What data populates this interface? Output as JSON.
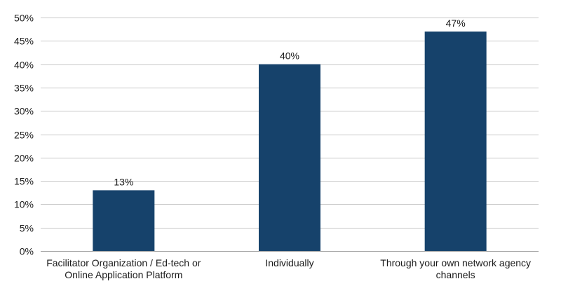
{
  "chart_data": {
    "type": "bar",
    "categories": [
      [
        "Facilitator Organization / Ed-tech or",
        "Online Application Platform"
      ],
      [
        "Individually"
      ],
      [
        "Through your own network agency",
        "channels"
      ]
    ],
    "values": [
      13,
      40,
      47
    ],
    "data_labels": [
      "13%",
      "40%",
      "47%"
    ],
    "title": "",
    "xlabel": "",
    "ylabel": "",
    "ylim": [
      0,
      50
    ],
    "yticks": [
      0,
      5,
      10,
      15,
      20,
      25,
      30,
      35,
      40,
      45,
      50
    ],
    "ytick_labels": [
      "0%",
      "5%",
      "10%",
      "15%",
      "20%",
      "25%",
      "30%",
      "35%",
      "40%",
      "45%",
      "50%"
    ],
    "grid": true,
    "legend": "none",
    "colors": {
      "bar": "#16426b",
      "grid": "#c8c8c8",
      "text": "#1a1a1a"
    }
  }
}
